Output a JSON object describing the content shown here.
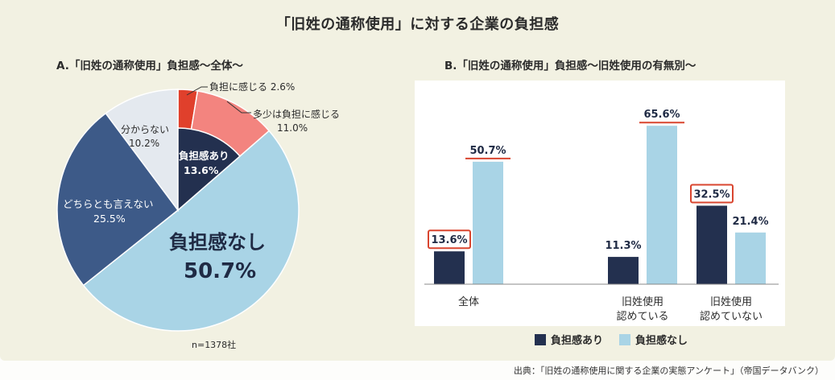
{
  "title": "「旧姓の通称使用」に対する企業の負担感",
  "source": "出典：「旧姓の通称使用に関する企業の実態アンケート」（帝国データバンク）",
  "colors": {
    "dark_navy": "#23304f",
    "light_blue": "#a9d4e6",
    "mid_navy": "#3d5a88",
    "pale": "#e4e9ef",
    "salmon": "#f3847f",
    "red": "#e0402c",
    "highlight_box": "#d9452f"
  },
  "chart_data": [
    {
      "type": "pie",
      "title": "A.「旧姓の通称使用」負担感〜全体〜",
      "note": "n=1378社",
      "slices": [
        {
          "label": "負担に感じる",
          "value": 2.6,
          "display": "2.6%"
        },
        {
          "label": "多少は負担に感じる",
          "value": 11.0,
          "display": "11.0%"
        },
        {
          "label": "負担感なし",
          "value": 50.7,
          "display": "50.7%"
        },
        {
          "label": "どちらとも言えない",
          "value": 25.5,
          "display": "25.5%"
        },
        {
          "label": "分からない",
          "value": 10.2,
          "display": "10.2%"
        }
      ],
      "inner_group": {
        "label": "負担感あり",
        "value": 13.6,
        "display": "13.6%"
      }
    },
    {
      "type": "bar",
      "title": "B.「旧姓の通称使用」負担感〜旧姓使用の有無別〜",
      "categories": [
        "全体",
        "旧姓使用\n認めている",
        "旧姓使用\n認めていない"
      ],
      "series": [
        {
          "name": "負担感あり",
          "values": [
            13.6,
            11.3,
            32.5
          ]
        },
        {
          "name": "負担感なし",
          "values": [
            50.7,
            65.6,
            21.4
          ]
        }
      ],
      "value_labels": [
        [
          "13.6%",
          "11.3%",
          "32.5%"
        ],
        [
          "50.7%",
          "65.6%",
          "21.4%"
        ]
      ],
      "ylim": [
        0,
        70
      ],
      "legend": "bottom"
    }
  ]
}
